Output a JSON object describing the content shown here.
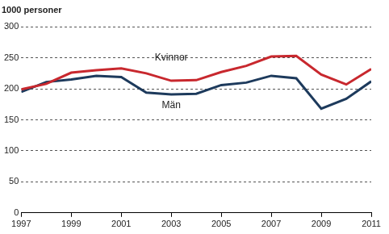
{
  "chart_data": {
    "type": "line",
    "ylabel": "1000 personer",
    "x": [
      1997,
      1998,
      1999,
      2000,
      2001,
      2002,
      2003,
      2004,
      2005,
      2006,
      2007,
      2008,
      2009,
      2010,
      2011
    ],
    "series": [
      {
        "name": "Kvinnor",
        "color": "#c8282e",
        "values": [
          199,
          208,
          226,
          230,
          233,
          225,
          213,
          214,
          227,
          237,
          252,
          253,
          223,
          207,
          232
        ]
      },
      {
        "name": "Män",
        "color": "#1d3a5c",
        "values": [
          195,
          211,
          215,
          221,
          219,
          194,
          191,
          192,
          206,
          210,
          221,
          217,
          168,
          184,
          212
        ]
      }
    ],
    "xlim": [
      1997,
      2011
    ],
    "xticks": [
      1997,
      1999,
      2001,
      2003,
      2005,
      2007,
      2009,
      2011
    ],
    "ylim": [
      0,
      300
    ],
    "yticks": [
      0,
      50,
      100,
      150,
      200,
      250,
      300
    ],
    "grid": true
  }
}
